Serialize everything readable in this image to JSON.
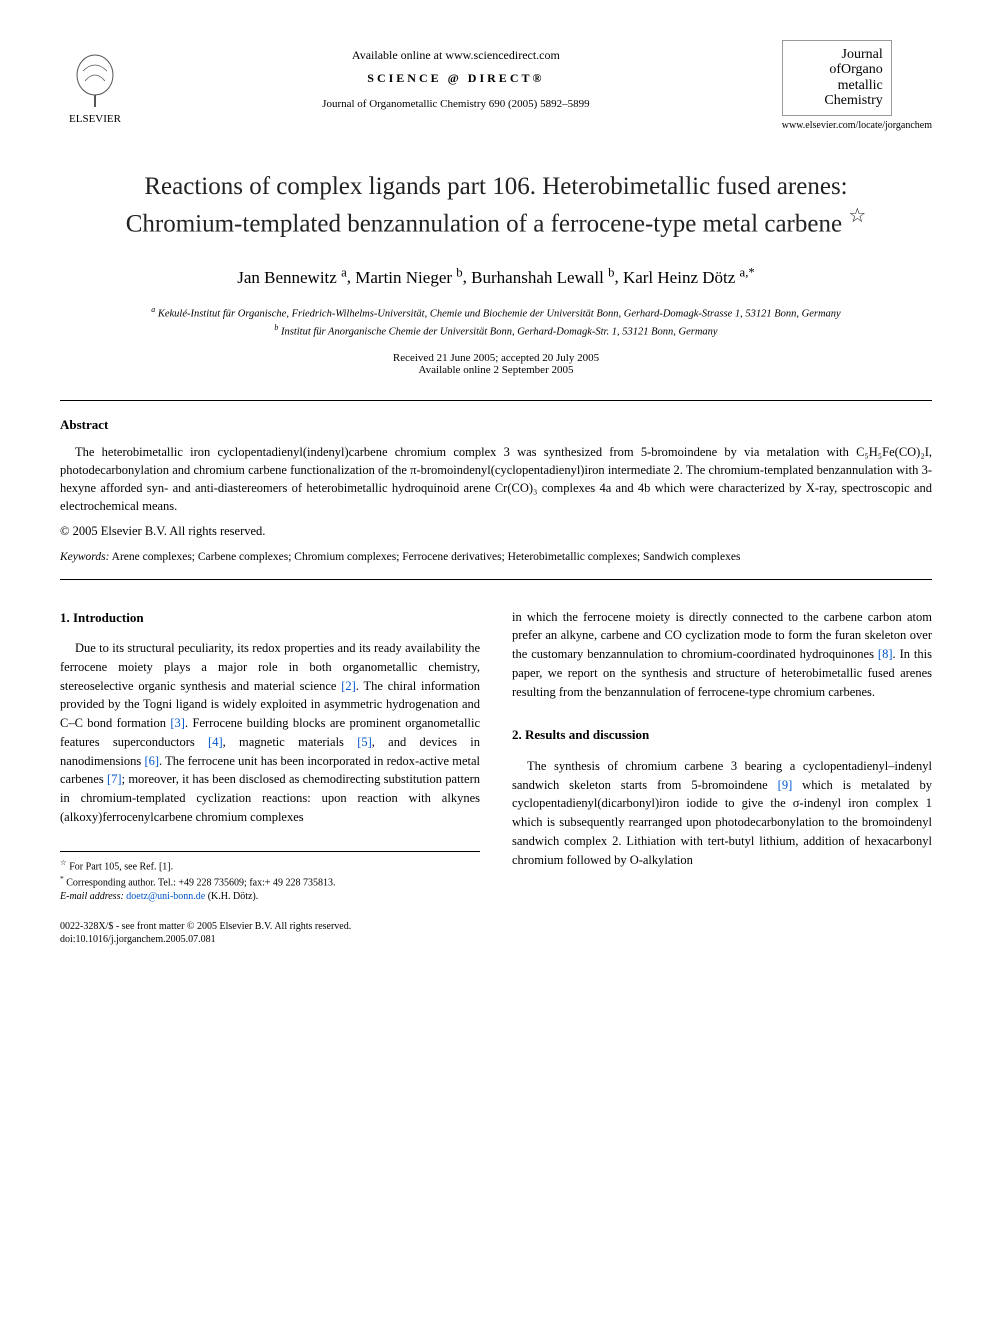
{
  "header": {
    "publisher_name": "ELSEVIER",
    "available_text": "Available online at www.sciencedirect.com",
    "sd_brand": "SCIENCE @ DIRECT®",
    "journal_citation": "Journal of Organometallic Chemistry 690 (2005) 5892–5899",
    "journal_logo_lines": [
      "Journal",
      "ofOrgano",
      "metallic",
      "Chemistry"
    ],
    "journal_url": "www.elsevier.com/locate/jorganchem"
  },
  "title": "Reactions of complex ligands part 106. Heterobimetallic fused arenes: Chromium-templated benzannulation of a ferrocene-type metal carbene",
  "title_star": "☆",
  "authors": [
    {
      "name": "Jan Bennewitz",
      "aff": "a"
    },
    {
      "name": "Martin Nieger",
      "aff": "b"
    },
    {
      "name": "Burhanshah Lewall",
      "aff": "b"
    },
    {
      "name": "Karl Heinz Dötz",
      "aff": "a,*"
    }
  ],
  "affiliations": [
    {
      "mark": "a",
      "text": "Kekulé-Institut für Organische, Friedrich-Wilhelms-Universität, Chemie und Biochemie der Universität Bonn, Gerhard-Domagk-Strasse 1, 53121 Bonn, Germany"
    },
    {
      "mark": "b",
      "text": "Institut für Anorganische Chemie der Universität Bonn, Gerhard-Domagk-Str. 1, 53121 Bonn, Germany"
    }
  ],
  "dates": {
    "received_accepted": "Received 21 June 2005; accepted 20 July 2005",
    "online": "Available online 2 September 2005"
  },
  "abstract": {
    "heading": "Abstract",
    "body": "The heterobimetallic iron cyclopentadienyl(indenyl)carbene chromium complex 3 was synthesized from 5-bromoindene by via metalation with C₅H₅Fe(CO)₂I, photodecarbonylation and chromium carbene functionalization of the π-bromoindenyl(cyclopentadienyl)iron intermediate 2. The chromium-templated benzannulation with 3-hexyne afforded syn- and anti-diastereomers of heterobimetallic hydroquinoid arene Cr(CO)₃ complexes 4a and 4b which were characterized by X-ray, spectroscopic and electrochemical means.",
    "copyright": "© 2005 Elsevier B.V. All rights reserved."
  },
  "keywords": {
    "label": "Keywords:",
    "items": "Arene complexes; Carbene complexes; Chromium complexes; Ferrocene derivatives; Heterobimetallic complexes; Sandwich complexes"
  },
  "sections": {
    "intro": {
      "heading": "1. Introduction",
      "p1": "Due to its structural peculiarity, its redox properties and its ready availability the ferrocene moiety plays a major role in both organometallic chemistry, stereoselective organic synthesis and material science [2]. The chiral information provided by the Togni ligand is widely exploited in asymmetric hydrogenation and C–C bond formation [3]. Ferrocene building blocks are prominent organometallic features superconductors [4], magnetic materials [5], and devices in nanodimensions [6]. The ferrocene unit has been incorporated in redox-active metal carbenes [7]; moreover, it has been disclosed as chemodirecting substitution pattern in chromium-templated cyclization reactions: upon reaction with alkynes (alkoxy)ferrocenylcarbene chromium complexes",
      "p1_cont": "in which the ferrocene moiety is directly connected to the carbene carbon atom prefer an alkyne, carbene and CO cyclization mode to form the furan skeleton over the customary benzannulation to chromium-coordinated hydroquinones [8]. In this paper, we report on the synthesis and structure of heterobimetallic fused arenes resulting from the benzannulation of ferrocene-type chromium carbenes."
    },
    "results": {
      "heading": "2. Results and discussion",
      "p1": "The synthesis of chromium carbene 3 bearing a cyclopentadienyl–indenyl sandwich skeleton starts from 5-bromoindene [9] which is metalated by cyclopentadienyl(dicarbonyl)iron iodide to give the σ-indenyl iron complex 1 which is subsequently rearranged upon photodecarbonylation to the bromoindenyl sandwich complex 2. Lithiation with tert-butyl lithium, addition of hexacarbonyl chromium followed by O-alkylation"
    }
  },
  "footnotes": {
    "note1_mark": "☆",
    "note1": "For Part 105, see Ref. [1].",
    "note2_mark": "*",
    "note2": "Corresponding author. Tel.: +49 228 735609; fax:+ 49 228 735813.",
    "email_label": "E-mail address:",
    "email": "doetz@uni-bonn.de",
    "email_after": "(K.H. Dötz)."
  },
  "footer": {
    "line1": "0022-328X/$ - see front matter © 2005 Elsevier B.V. All rights reserved.",
    "line2": "doi:10.1016/j.jorganchem.2005.07.081"
  },
  "colors": {
    "link": "#0055cc",
    "text": "#000000",
    "bg": "#ffffff"
  }
}
